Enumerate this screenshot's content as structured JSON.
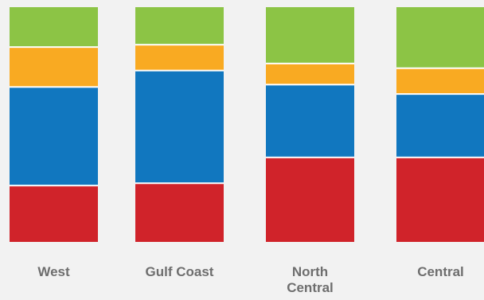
{
  "chart_data": {
    "type": "bar",
    "stacked": true,
    "normalized": true,
    "categories": [
      "West",
      "Gulf Coast",
      "North\nCentral",
      "Central"
    ],
    "series": [
      {
        "values": [
          24,
          25,
          36,
          36
        ]
      },
      {
        "values": [
          42,
          48,
          31,
          27
        ]
      },
      {
        "values": [
          17,
          11,
          9,
          11
        ]
      },
      {
        "values": [
          17,
          16,
          24,
          26
        ]
      }
    ],
    "ylim": [
      0,
      100
    ],
    "grid": false,
    "legend": "none",
    "colors": [
      "#d0232a",
      "#1177bf",
      "#f9aa22",
      "#8cc445"
    ],
    "separator_color": "#ffffff",
    "background": "#f2f2f2"
  }
}
